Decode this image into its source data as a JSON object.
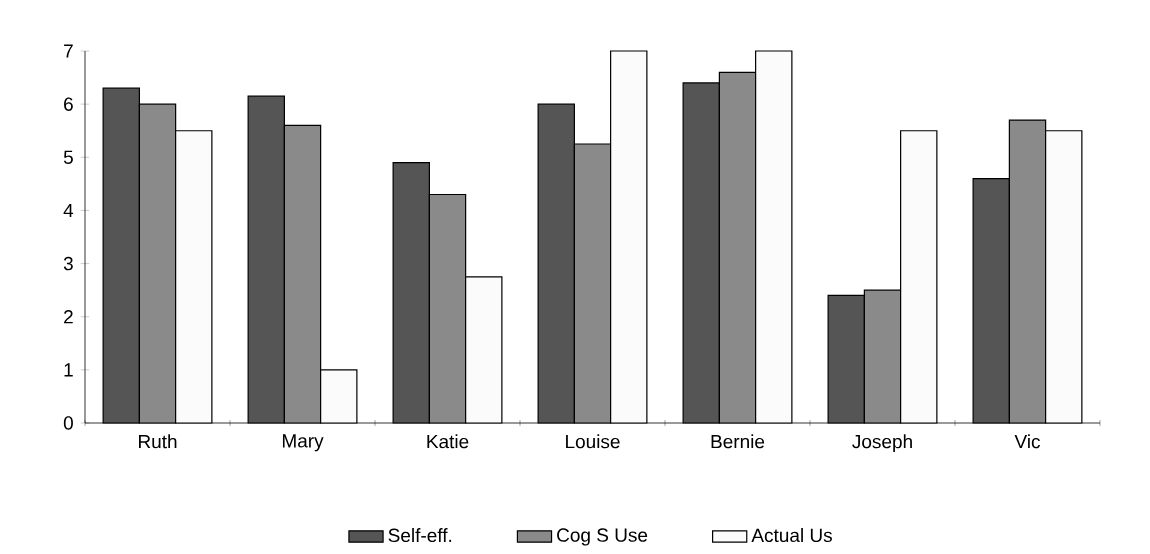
{
  "chart_data": {
    "type": "bar",
    "categories": [
      "Ruth",
      "Mary",
      "Katie",
      "Louise",
      "Bernie",
      "Joseph",
      "Vic"
    ],
    "series": [
      {
        "name": "Self-eff.",
        "color": "#555555",
        "values": [
          6.3,
          6.15,
          4.9,
          6.0,
          6.4,
          2.4,
          4.6
        ]
      },
      {
        "name": "Cog S Use",
        "color": "#8a8a8a",
        "values": [
          6.0,
          5.6,
          4.3,
          5.25,
          6.6,
          2.5,
          5.7
        ]
      },
      {
        "name": "Actual Us",
        "color": "#fbfbfb",
        "values": [
          5.5,
          1.0,
          2.75,
          7.0,
          7.0,
          5.5,
          5.5
        ]
      }
    ],
    "ylim": [
      0,
      7
    ],
    "yticks": [
      0,
      1,
      2,
      3,
      4,
      5,
      6,
      7
    ],
    "legend": "bottom"
  }
}
